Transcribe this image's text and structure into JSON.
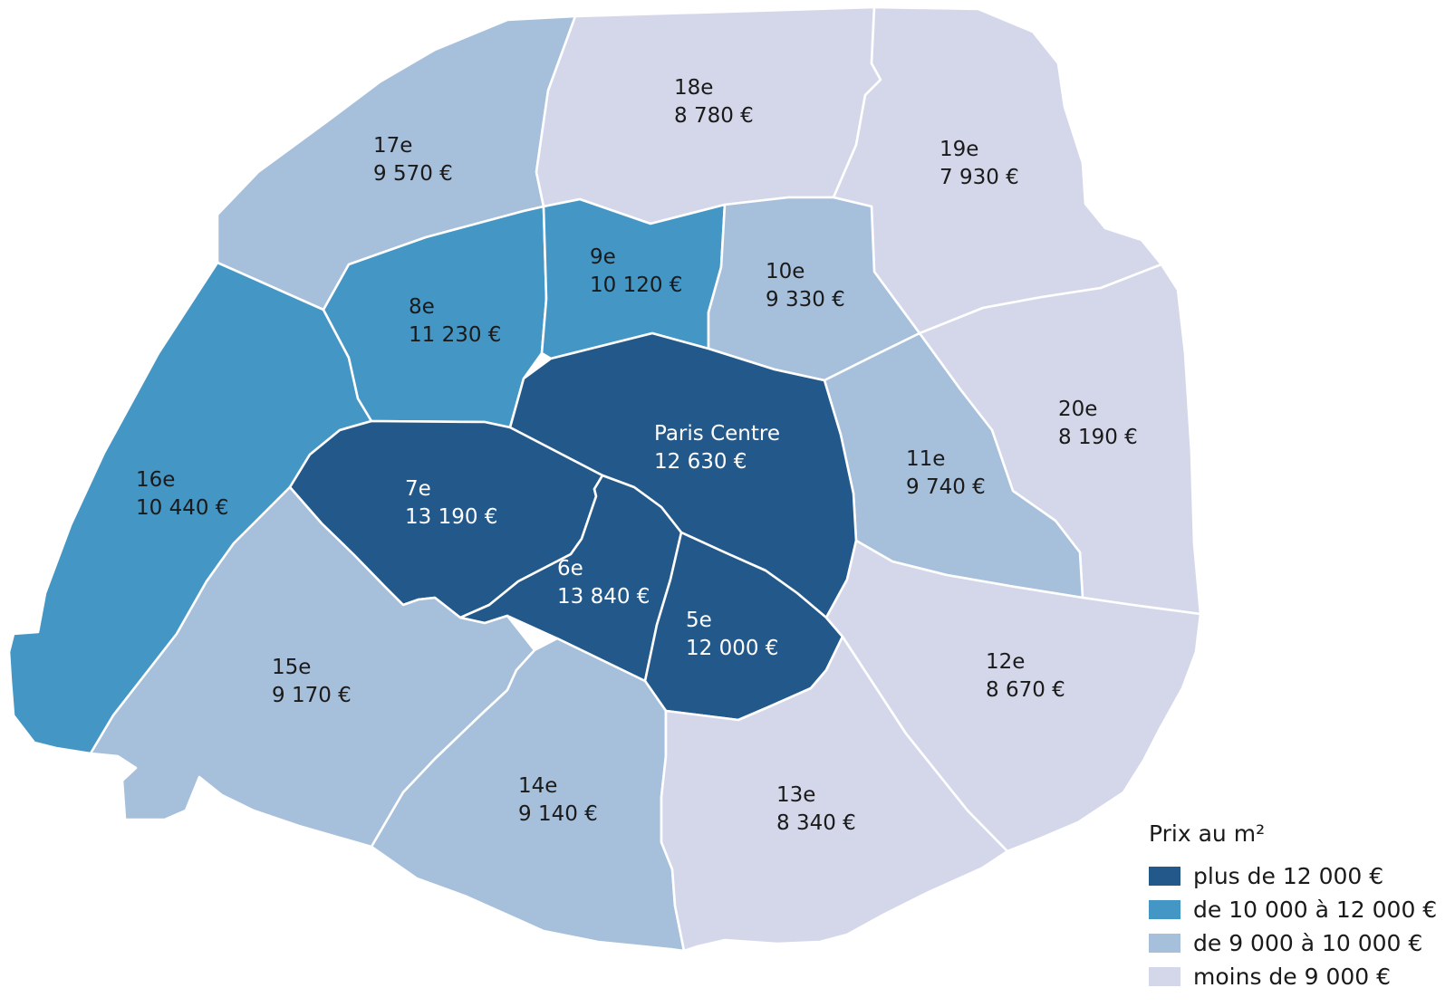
{
  "colors": {
    "band1": "#23598a",
    "band2": "#4496c5",
    "band3": "#a6bfdb",
    "band4": "#d4d7ea",
    "text_dark": "#1a1a1a",
    "text_light": "#ffffff"
  },
  "legend": {
    "title": "Prix au m²",
    "items": [
      {
        "label": "plus de 12 000 €",
        "band": "band1"
      },
      {
        "label": "de 10 000 à 12 000 €",
        "band": "band2"
      },
      {
        "label": "de 9 000 à 10 000 €",
        "band": "band3"
      },
      {
        "label": "moins de 9 000 €",
        "band": "band4"
      }
    ]
  },
  "districts": [
    {
      "id": "centre",
      "name": "Paris Centre",
      "price": "12 630 €",
      "value": 12630,
      "band": "band1"
    },
    {
      "id": "5e",
      "name": "5e",
      "price": "12 000 €",
      "value": 12000,
      "band": "band1"
    },
    {
      "id": "6e",
      "name": "6e",
      "price": "13 840 €",
      "value": 13840,
      "band": "band1"
    },
    {
      "id": "7e",
      "name": "7e",
      "price": "13 190 €",
      "value": 13190,
      "band": "band1"
    },
    {
      "id": "8e",
      "name": "8e",
      "price": "11 230 €",
      "value": 11230,
      "band": "band2"
    },
    {
      "id": "9e",
      "name": "9e",
      "price": "10 120 €",
      "value": 10120,
      "band": "band2"
    },
    {
      "id": "10e",
      "name": "10e",
      "price": "9 330 €",
      "value": 9330,
      "band": "band3"
    },
    {
      "id": "11e",
      "name": "11e",
      "price": "9 740 €",
      "value": 9740,
      "band": "band3"
    },
    {
      "id": "12e",
      "name": "12e",
      "price": "8 670 €",
      "value": 8670,
      "band": "band4"
    },
    {
      "id": "13e",
      "name": "13e",
      "price": "8 340 €",
      "value": 8340,
      "band": "band4"
    },
    {
      "id": "14e",
      "name": "14e",
      "price": "9 140 €",
      "value": 9140,
      "band": "band3"
    },
    {
      "id": "15e",
      "name": "15e",
      "price": "9 170 €",
      "value": 9170,
      "band": "band3"
    },
    {
      "id": "16e",
      "name": "16e",
      "price": "10 440 €",
      "value": 10440,
      "band": "band2"
    },
    {
      "id": "17e",
      "name": "17e",
      "price": "9 570 €",
      "value": 9570,
      "band": "band3"
    },
    {
      "id": "18e",
      "name": "18e",
      "price": "8 780 €",
      "value": 8780,
      "band": "band4"
    },
    {
      "id": "19e",
      "name": "19e",
      "price": "7 930 €",
      "value": 7930,
      "band": "band4"
    },
    {
      "id": "20e",
      "name": "20e",
      "price": "8 190 €",
      "value": 8190,
      "band": "band4"
    }
  ]
}
